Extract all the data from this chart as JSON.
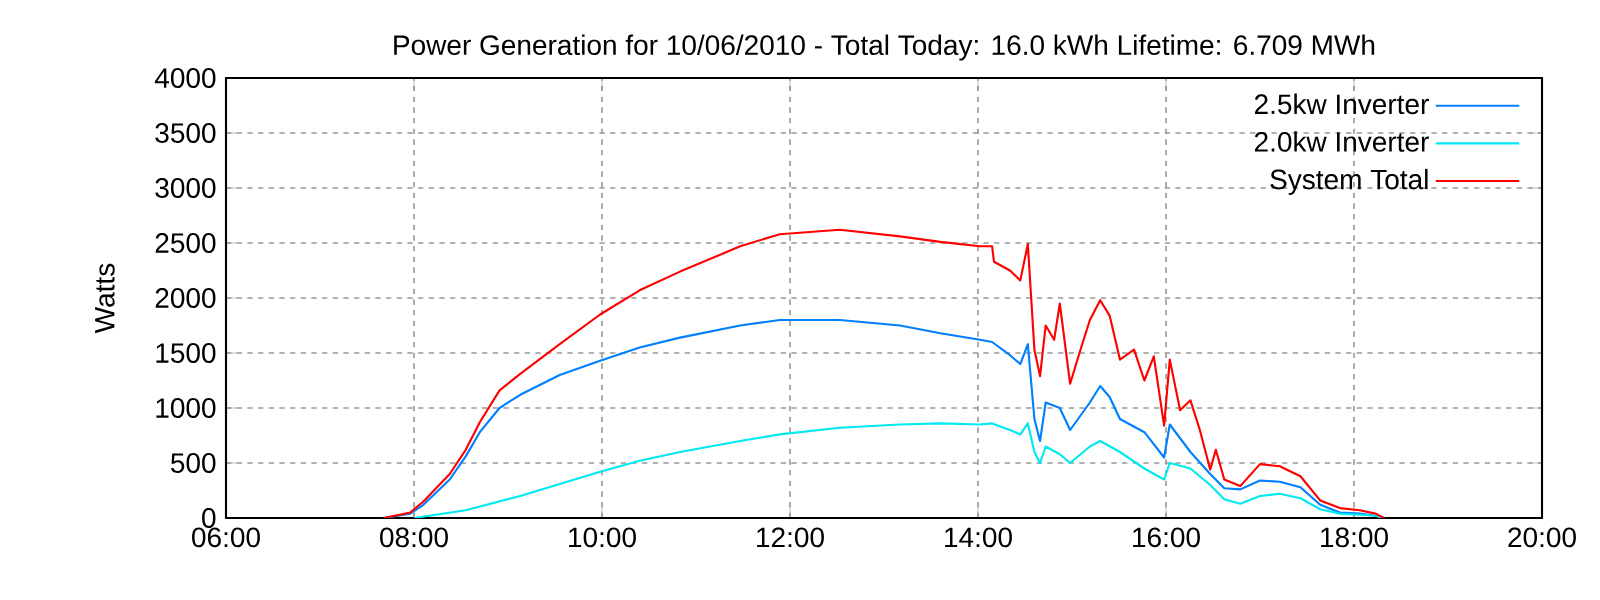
{
  "chart_data": {
    "type": "line",
    "title": "Power Generation for 10/06/2010 - Total Today: 16.0 kWh   Lifetime: 6.709 MWh",
    "ylabel": "Watts",
    "xlim": [
      6,
      20
    ],
    "ylim": [
      0,
      4000
    ],
    "xticks": [
      {
        "value": 6,
        "label": "06:00"
      },
      {
        "value": 8,
        "label": "08:00"
      },
      {
        "value": 10,
        "label": "10:00"
      },
      {
        "value": 12,
        "label": "12:00"
      },
      {
        "value": 14,
        "label": "14:00"
      },
      {
        "value": 16,
        "label": "16:00"
      },
      {
        "value": 18,
        "label": "18:00"
      },
      {
        "value": 20,
        "label": "20:00"
      }
    ],
    "yticks": [
      0,
      500,
      1000,
      1500,
      2000,
      2500,
      3000,
      3500,
      4000
    ],
    "grid": true,
    "legend": "top right",
    "series": [
      {
        "name": "2.5kw Inverter",
        "color": "#0080ff",
        "x": [
          7.68,
          7.96,
          8.1,
          8.38,
          8.55,
          8.7,
          8.91,
          9.13,
          9.55,
          9.98,
          10.4,
          10.83,
          11.47,
          11.89,
          12.53,
          13.17,
          13.6,
          14.02,
          14.15,
          14.34,
          14.45,
          14.53,
          14.6,
          14.66,
          14.72,
          14.87,
          14.98,
          15.19,
          15.3,
          15.4,
          15.51,
          15.77,
          15.98,
          16.04,
          16.26,
          16.47,
          16.62,
          16.79,
          17.0,
          17.21,
          17.43,
          17.64,
          17.85,
          18.06,
          18.23,
          18.32
        ],
        "values": [
          0,
          40,
          120,
          350,
          560,
          780,
          1000,
          1120,
          1300,
          1430,
          1550,
          1640,
          1750,
          1800,
          1800,
          1750,
          1680,
          1620,
          1600,
          1480,
          1400,
          1580,
          900,
          700,
          1050,
          1000,
          800,
          1050,
          1200,
          1100,
          900,
          780,
          550,
          850,
          600,
          400,
          270,
          260,
          340,
          330,
          280,
          120,
          50,
          40,
          20,
          0
        ]
      },
      {
        "name": "2.0kw Inverter",
        "color": "#00e8f0",
        "x": [
          8.0,
          8.55,
          9.13,
          9.55,
          9.98,
          10.4,
          10.83,
          11.47,
          11.89,
          12.53,
          13.17,
          13.6,
          14.02,
          14.15,
          14.34,
          14.45,
          14.53,
          14.6,
          14.66,
          14.72,
          14.87,
          14.98,
          15.19,
          15.3,
          15.51,
          15.77,
          15.98,
          16.04,
          16.26,
          16.47,
          16.62,
          16.79,
          17.0,
          17.21,
          17.43,
          17.64,
          17.85,
          18.06,
          18.23,
          18.32
        ],
        "values": [
          0,
          70,
          200,
          310,
          420,
          520,
          600,
          700,
          760,
          820,
          850,
          860,
          850,
          860,
          800,
          760,
          860,
          600,
          500,
          650,
          580,
          500,
          650,
          700,
          600,
          450,
          350,
          500,
          450,
          300,
          170,
          130,
          200,
          220,
          180,
          80,
          40,
          30,
          20,
          0
        ]
      },
      {
        "name": "System Total",
        "color": "#ff0000",
        "x": [
          7.68,
          7.96,
          8.1,
          8.38,
          8.55,
          8.7,
          8.91,
          9.13,
          9.55,
          9.98,
          10.4,
          10.83,
          11.47,
          11.89,
          12.53,
          13.17,
          13.6,
          14.02,
          14.15,
          14.17,
          14.34,
          14.45,
          14.53,
          14.6,
          14.66,
          14.72,
          14.81,
          14.87,
          14.98,
          15.09,
          15.19,
          15.3,
          15.4,
          15.51,
          15.66,
          15.77,
          15.87,
          15.98,
          16.04,
          16.15,
          16.26,
          16.36,
          16.47,
          16.53,
          16.62,
          16.79,
          17.0,
          17.21,
          17.43,
          17.64,
          17.85,
          18.06,
          18.23,
          18.32
        ],
        "values": [
          0,
          50,
          150,
          400,
          620,
          870,
          1160,
          1310,
          1580,
          1850,
          2070,
          2240,
          2470,
          2580,
          2620,
          2560,
          2510,
          2470,
          2470,
          2330,
          2250,
          2160,
          2490,
          1530,
          1290,
          1750,
          1620,
          1950,
          1220,
          1530,
          1800,
          1980,
          1840,
          1440,
          1530,
          1250,
          1470,
          840,
          1440,
          980,
          1070,
          800,
          440,
          620,
          350,
          290,
          490,
          470,
          380,
          160,
          90,
          70,
          40,
          0
        ]
      }
    ]
  }
}
